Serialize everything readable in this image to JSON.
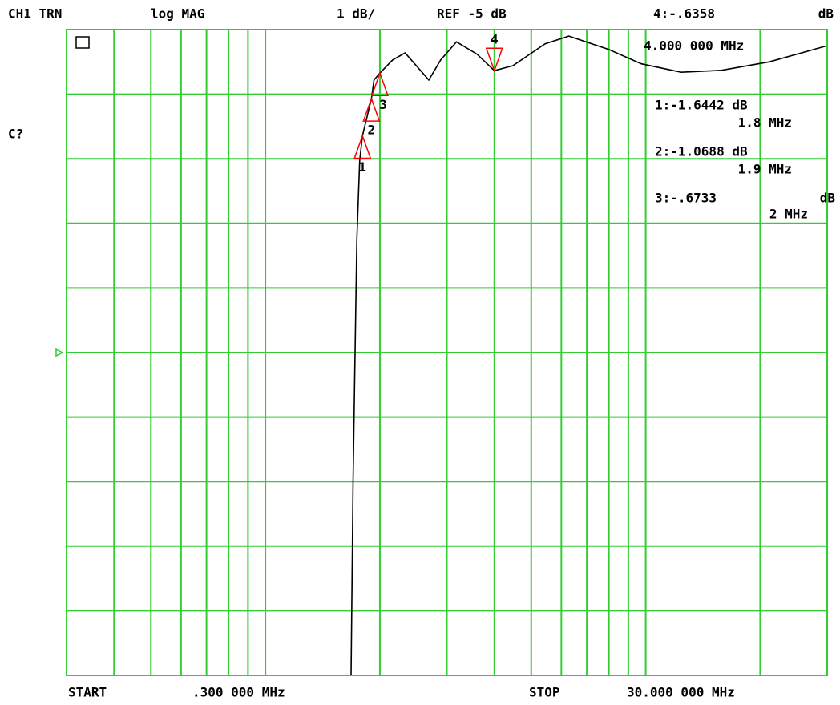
{
  "chart_data": {
    "type": "line",
    "header": {
      "channel": "CH1 TRN",
      "format": "log MAG",
      "scale": "1 dB/",
      "reference": "REF -5 dB",
      "active_marker": "4:-.6358",
      "active_unit": "dB",
      "active_freq": "4.000 000 MHz"
    },
    "side_label": "C?",
    "footer": {
      "start": "START",
      "start_value": ".300 000 MHz",
      "stop": "STOP",
      "stop_value": "30.000 000 MHz"
    },
    "x": [
      0.3,
      1.68,
      1.7,
      1.74,
      1.77,
      1.8,
      1.9,
      1.93,
      2.0,
      2.16,
      2.33,
      2.69,
      2.89,
      3.18,
      3.6,
      4.0,
      4.47,
      5.44,
      6.28,
      8.02,
      9.74,
      12.4,
      15.8,
      21.1,
      30
    ],
    "values": [
      -10,
      -10,
      -6.99,
      -3.26,
      -2.02,
      -1.6442,
      -1.0688,
      -0.78,
      -0.6733,
      -0.47,
      -0.36,
      -0.78,
      -0.47,
      -0.19,
      -0.38,
      -0.6358,
      -0.56,
      -0.22,
      -0.1,
      -0.31,
      -0.53,
      -0.66,
      -0.63,
      -0.5,
      -0.25
    ],
    "color": "#000000",
    "log_x": true,
    "grid": true,
    "grid_color": "#33cc33",
    "xlim": [
      0.3,
      30
    ],
    "ylim": [
      -10,
      0
    ],
    "xticks": [
      0.3,
      0.4,
      0.5,
      0.6,
      0.7,
      0.8,
      0.9,
      1,
      2,
      3,
      4,
      5,
      6,
      7,
      8,
      9,
      10,
      20,
      30
    ],
    "yticks": [
      -10,
      -9,
      -8,
      -7,
      -6,
      -5,
      -4,
      -3,
      -2,
      -1,
      0
    ],
    "ref_value": -5,
    "marker_color": "#ff0000",
    "markers": [
      {
        "name": "1",
        "x": 1.8,
        "value": -1.6442,
        "readout": "1:-1.6442 dB",
        "freq_label": "1.8 MHz"
      },
      {
        "name": "2",
        "x": 1.9,
        "value": -1.0688,
        "readout": "2:-1.0688 dB",
        "freq_label": "1.9 MHz"
      },
      {
        "name": "3",
        "x": 2,
        "value": -0.6733,
        "readout": "3:-.6733",
        "unit": "dB",
        "freq_label": "2 MHz"
      },
      {
        "name": "4",
        "x": 4,
        "value": -0.6358
      }
    ]
  }
}
